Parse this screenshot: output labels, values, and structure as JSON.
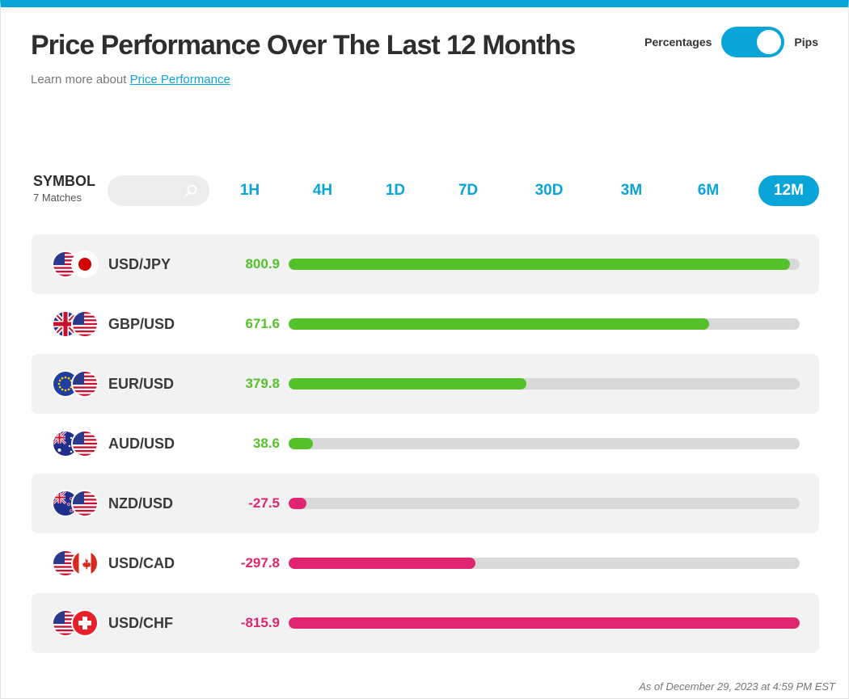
{
  "header": {
    "title": "Price Performance Over The Last 12 Months",
    "learn_prefix": "Learn more about ",
    "learn_link": "Price Performance"
  },
  "toggle": {
    "left_label": "Percentages",
    "right_label": "Pips",
    "selected": "Pips"
  },
  "symbol": {
    "label": "SYMBOL",
    "count": "7 Matches"
  },
  "search": {
    "placeholder": "",
    "icon": "search-icon"
  },
  "tabs": [
    {
      "label": "1H",
      "active": false
    },
    {
      "label": "4H",
      "active": false
    },
    {
      "label": "1D",
      "active": false
    },
    {
      "label": "7D",
      "active": false
    },
    {
      "label": "30D",
      "active": false
    },
    {
      "label": "3M",
      "active": false
    },
    {
      "label": "6M",
      "active": false
    },
    {
      "label": "12M",
      "active": true
    }
  ],
  "colors": {
    "accent": "#0aa5d8",
    "positive": "#55c12a",
    "negative": "#e0256f",
    "track": "#d9d9d9"
  },
  "scale_max": 815.9,
  "rows": [
    {
      "pair": "USD/JPY",
      "value": "800.9",
      "num": 800.9,
      "flags": [
        "us",
        "jp"
      ]
    },
    {
      "pair": "GBP/USD",
      "value": "671.6",
      "num": 671.6,
      "flags": [
        "gb",
        "us"
      ]
    },
    {
      "pair": "EUR/USD",
      "value": "379.8",
      "num": 379.8,
      "flags": [
        "eu",
        "us"
      ]
    },
    {
      "pair": "AUD/USD",
      "value": "38.6",
      "num": 38.6,
      "flags": [
        "au",
        "us"
      ]
    },
    {
      "pair": "NZD/USD",
      "value": "-27.5",
      "num": -27.5,
      "flags": [
        "nz",
        "us"
      ]
    },
    {
      "pair": "USD/CAD",
      "value": "-297.8",
      "num": -297.8,
      "flags": [
        "us",
        "ca"
      ]
    },
    {
      "pair": "USD/CHF",
      "value": "-815.9",
      "num": -815.9,
      "flags": [
        "us",
        "ch"
      ]
    }
  ],
  "footnote": "As of December 29, 2023 at 4:59 PM EST"
}
